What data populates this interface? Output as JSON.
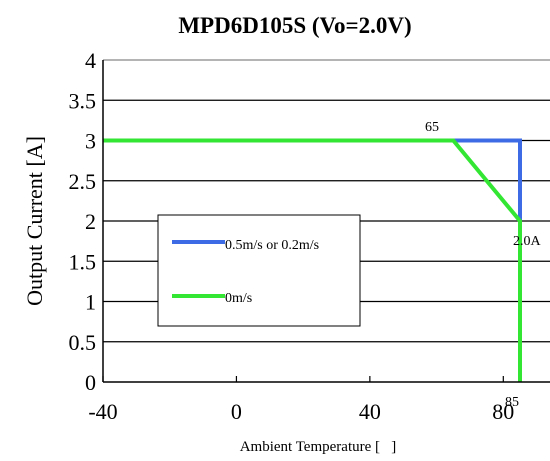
{
  "chart_data": {
    "type": "line",
    "title": "MPD6D105S  (Vo=2.0V)",
    "xlabel": "Ambient Temperature [   ]",
    "ylabel": "Output Current [A]",
    "xlim": [
      -40,
      94
    ],
    "ylim": [
      0,
      4
    ],
    "x_ticks": [
      "-40",
      "0",
      "40",
      "80"
    ],
    "y_ticks": [
      "0",
      "0.5",
      "1",
      "1.5",
      "2",
      "2.5",
      "3",
      "3.5",
      "4"
    ],
    "grid": "horizontal",
    "legend_position": "center-left",
    "series": [
      {
        "name": "0.5m/s or 0.2m/s",
        "color": "#3d6be6",
        "points": [
          [
            -40,
            3
          ],
          [
            85,
            3
          ],
          [
            85,
            2
          ]
        ]
      },
      {
        "name": "0m/s",
        "color": "#33e633",
        "points": [
          [
            -40,
            3
          ],
          [
            65,
            3
          ],
          [
            85,
            2
          ],
          [
            85,
            0
          ]
        ]
      }
    ],
    "annotations": [
      {
        "text": "65",
        "x": 65,
        "y": 3
      },
      {
        "text": "2.0A",
        "x": 85,
        "y": 2
      },
      {
        "text": "85",
        "x": 85,
        "y": 0
      }
    ]
  }
}
